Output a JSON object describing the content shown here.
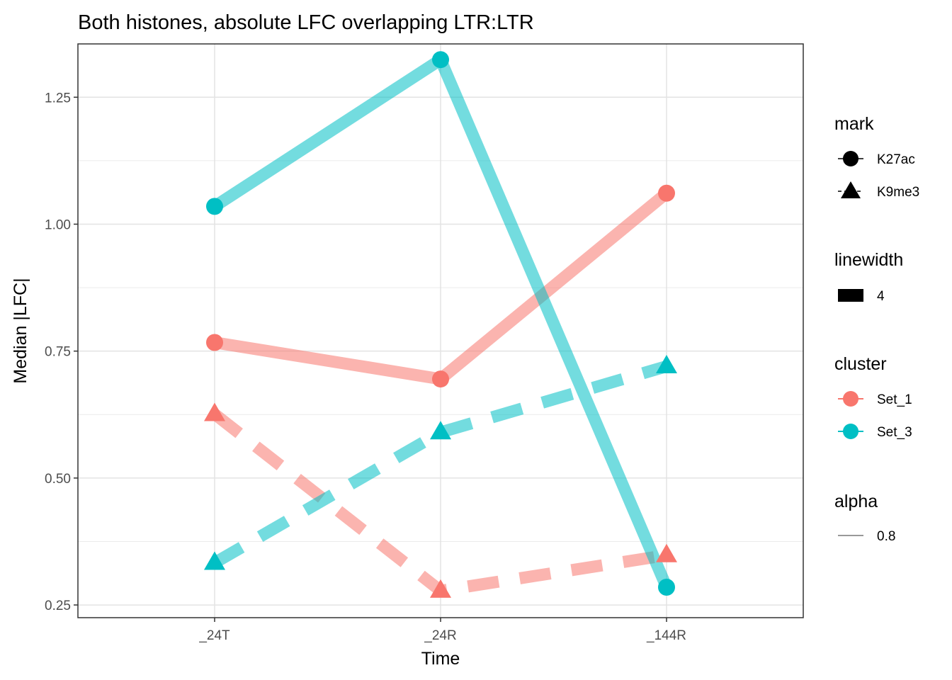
{
  "chart_data": {
    "type": "line",
    "title": "Both histones, absolute LFC overlapping LTR:LTR",
    "xlabel": "Time",
    "ylabel": "Median |LFC|",
    "categories": [
      "_24T",
      "_24R",
      "_144R"
    ],
    "yticks": [
      "0.25",
      "0.50",
      "0.75",
      "1.00",
      "1.25"
    ],
    "ytick_values": [
      0.25,
      0.5,
      0.75,
      1.0,
      1.25
    ],
    "ylim": [
      0.225,
      1.355
    ],
    "grid": true,
    "legend_position": "right",
    "series": [
      {
        "cluster": "Set_1",
        "mark": "K27ac",
        "color": "#F8766D",
        "dash": "solid",
        "shape": "circle",
        "values": [
          0.767,
          0.695,
          1.061
        ]
      },
      {
        "cluster": "Set_3",
        "mark": "K27ac",
        "color": "#00BFC4",
        "dash": "solid",
        "shape": "circle",
        "values": [
          1.035,
          1.324,
          0.285
        ]
      },
      {
        "cluster": "Set_1",
        "mark": "K9me3",
        "color": "#F8766D",
        "dash": "dashed",
        "shape": "triangle",
        "values": [
          0.626,
          0.278,
          0.348
        ]
      },
      {
        "cluster": "Set_3",
        "mark": "K9me3",
        "color": "#00BFC4",
        "dash": "dashed",
        "shape": "triangle",
        "values": [
          0.333,
          0.59,
          0.72
        ]
      }
    ],
    "legend": {
      "mark": {
        "title": "mark",
        "items": [
          "K27ac",
          "K9me3"
        ]
      },
      "linewidth": {
        "title": "linewidth",
        "items": [
          "4"
        ]
      },
      "cluster": {
        "title": "cluster",
        "items": [
          "Set_1",
          "Set_3"
        ],
        "colors": [
          "#F8766D",
          "#00BFC4"
        ]
      },
      "alpha": {
        "title": "alpha",
        "items": [
          "0.8"
        ]
      }
    }
  }
}
